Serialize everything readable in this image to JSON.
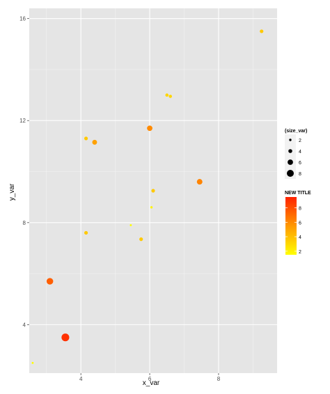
{
  "chart_data": {
    "type": "scatter",
    "xlabel": "x_var",
    "ylabel": "y_var",
    "xlim": [
      2.5,
      9.7
    ],
    "ylim": [
      2.1,
      16.4
    ],
    "x_ticks": [
      4,
      6,
      8
    ],
    "y_ticks": [
      4,
      8,
      12,
      16
    ],
    "grid": true,
    "legend_position": "right",
    "points": [
      {
        "x": 2.6,
        "y": 2.5,
        "size_var": 1.5
      },
      {
        "x": 3.1,
        "y": 5.7,
        "size_var": 7.5
      },
      {
        "x": 3.55,
        "y": 3.5,
        "size_var": 9
      },
      {
        "x": 4.15,
        "y": 11.3,
        "size_var": 3.6
      },
      {
        "x": 4.15,
        "y": 7.6,
        "size_var": 3.6
      },
      {
        "x": 4.4,
        "y": 11.15,
        "size_var": 5.2
      },
      {
        "x": 5.45,
        "y": 7.9,
        "size_var": 1.5
      },
      {
        "x": 5.75,
        "y": 7.35,
        "size_var": 3.6
      },
      {
        "x": 6.0,
        "y": 11.7,
        "size_var": 6.0
      },
      {
        "x": 6.05,
        "y": 8.6,
        "size_var": 2
      },
      {
        "x": 6.1,
        "y": 9.25,
        "size_var": 3.6
      },
      {
        "x": 6.5,
        "y": 13.0,
        "size_var": 3.1
      },
      {
        "x": 6.6,
        "y": 12.95,
        "size_var": 3.1
      },
      {
        "x": 7.45,
        "y": 9.6,
        "size_var": 6.2
      },
      {
        "x": 9.25,
        "y": 15.5,
        "size_var": 3.6
      }
    ],
    "size_legend": {
      "title": "(size_var)",
      "breaks": [
        2,
        4,
        6,
        8
      ]
    },
    "color_legend": {
      "title": "NEW TITLE",
      "breaks": [
        2,
        4,
        6,
        8
      ],
      "range": [
        1.5,
        9.5
      ],
      "low_color": "#ffff00",
      "high_color": "#ff2200"
    },
    "colors": {
      "panel_bg": "#e5e5e5",
      "grid_major": "#ffffff",
      "grid_minor": "#f2f2f2"
    }
  }
}
